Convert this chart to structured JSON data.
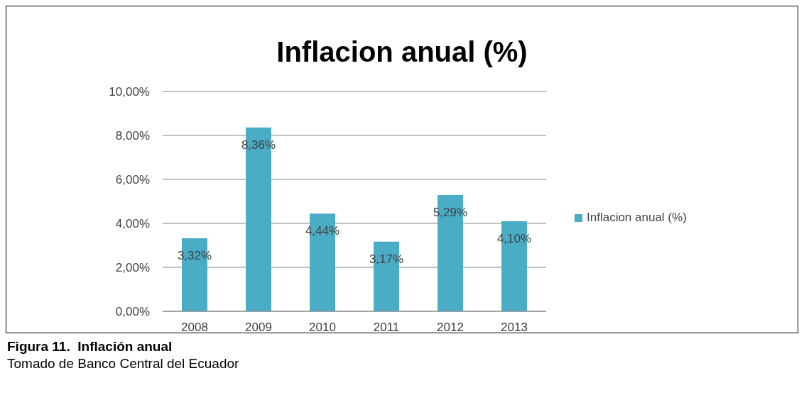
{
  "chart_data": {
    "type": "bar",
    "title": "Inflacion anual (%)",
    "categories": [
      "2008",
      "2009",
      "2010",
      "2011",
      "2012",
      "2013"
    ],
    "series": [
      {
        "name": "Inflacion anual (%)",
        "color": "#4bacc6",
        "values": [
          3.32,
          8.36,
          4.44,
          3.17,
          5.29,
          4.1
        ],
        "value_labels": [
          "3,32%",
          "8,36%",
          "4,44%",
          "3,17%",
          "5,29%",
          "4,10%"
        ]
      }
    ],
    "ylim": [
      0,
      10
    ],
    "yticks": [
      {
        "value": 0,
        "label": "0,00%"
      },
      {
        "value": 2,
        "label": "2,00%"
      },
      {
        "value": 4,
        "label": "4,00%"
      },
      {
        "value": 6,
        "label": "6,00%"
      },
      {
        "value": 8,
        "label": "8,00%"
      },
      {
        "value": 10,
        "label": "10,00%"
      }
    ],
    "grid": "y",
    "legend": "right",
    "annotations": [
      "Figura 11.  Inflación anual",
      "Tomado de Banco Central del Ecuador"
    ]
  }
}
